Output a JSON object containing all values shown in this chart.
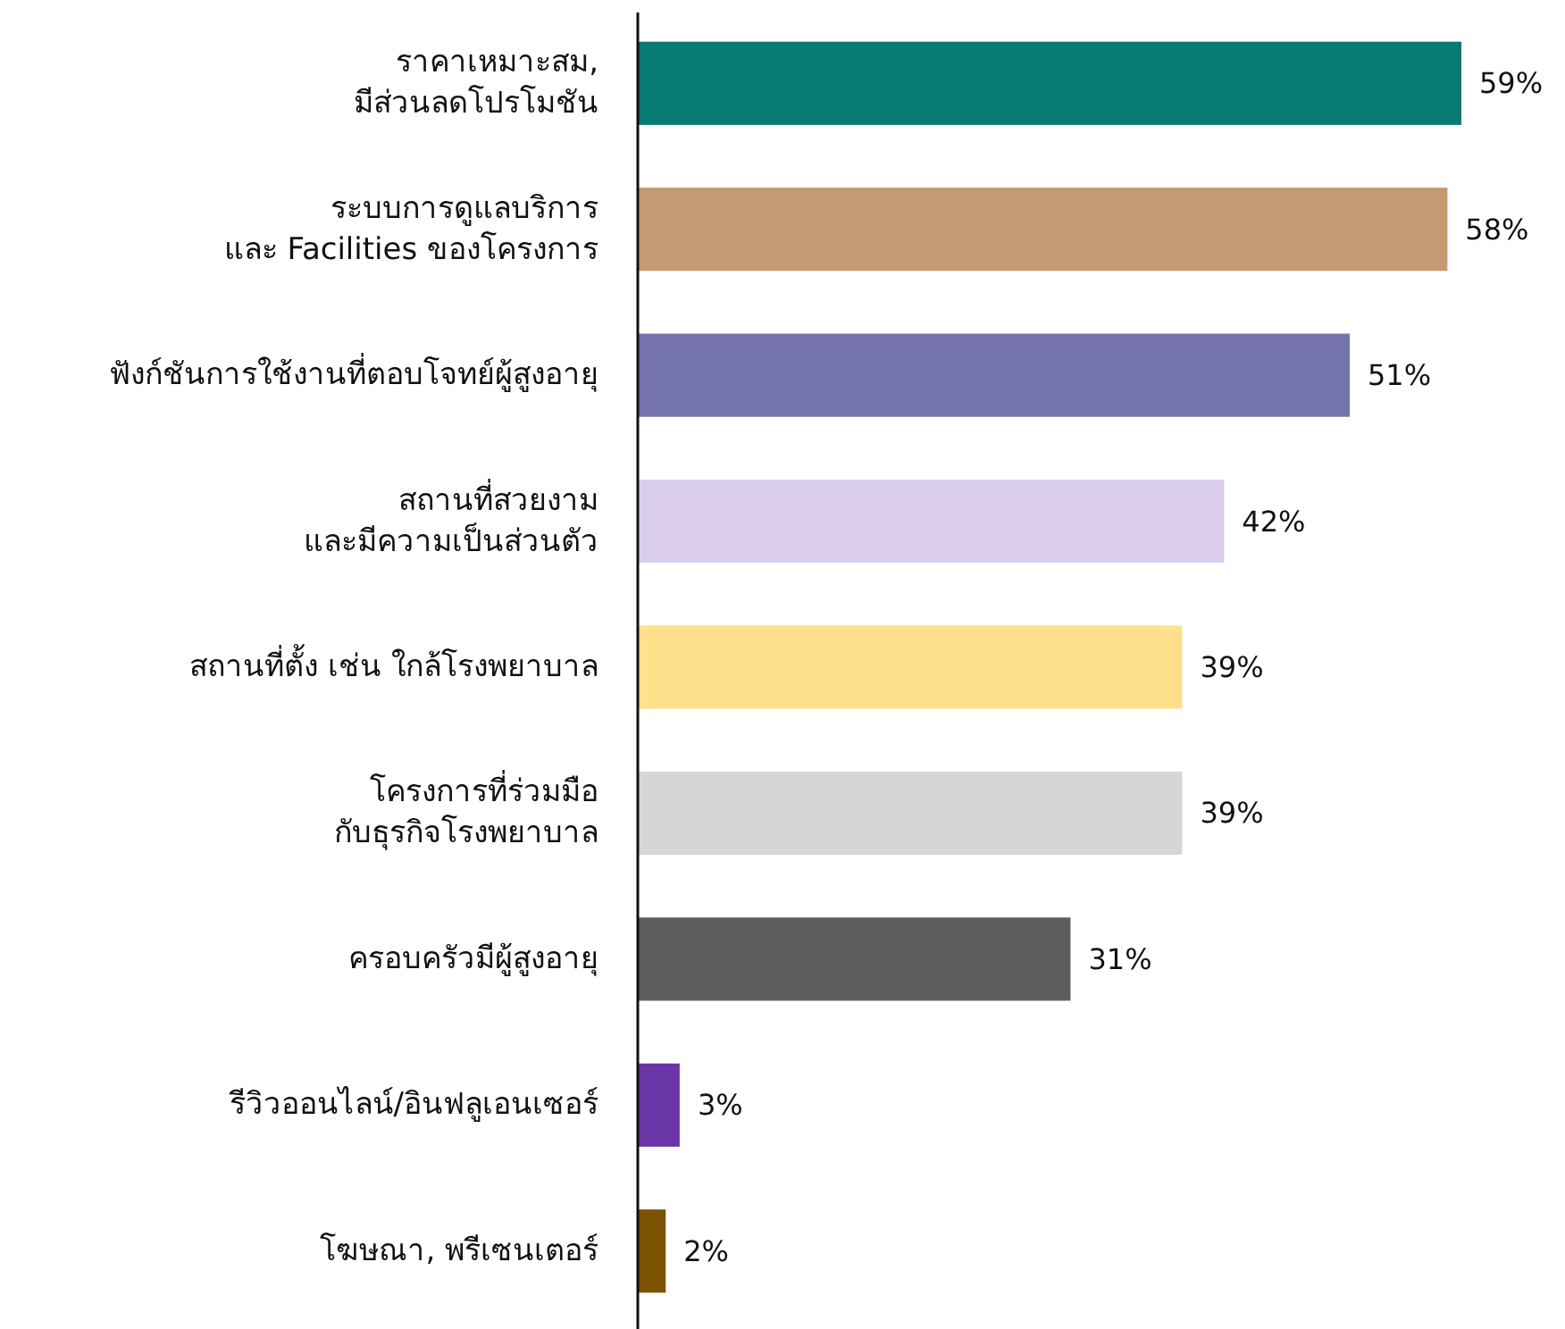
{
  "chart_data": {
    "type": "bar",
    "orientation": "horizontal",
    "categories": [
      "ราคาเหมาะสม,\nมีส่วนลดโปรโมชัน",
      "ระบบการดูแลบริการ\nและ Facilities ของโครงการ",
      "ฟังก์ชันการใช้งานที่ตอบโจทย์ผู้สูงอายุ",
      "สถานที่สวยงาม\nและมีความเป็นส่วนตัว",
      "สถานที่ตั้ง เช่น ใกล้โรงพยาบาล",
      "โครงการที่ร่วมมือ\nกับธุรกิจโรงพยาบาล",
      "ครอบครัวมีผู้สูงอายุ",
      "รีวิวออนไลน์/อินฟลูเอนเซอร์",
      "โฆษณา, พรีเซนเตอร์"
    ],
    "values": [
      59,
      58,
      51,
      42,
      39,
      39,
      31,
      3,
      2
    ],
    "colors": [
      "#077a71",
      "#c49a72",
      "#7473ad",
      "#dacdee",
      "#ffe08b",
      "#d5d6d8",
      "#5d5d5f",
      "#6a35a6",
      "#7c5200"
    ],
    "value_labels": [
      "59%",
      "58%",
      "51%",
      "42%",
      "39%",
      "39%",
      "31%",
      "3%",
      "2%"
    ]
  }
}
